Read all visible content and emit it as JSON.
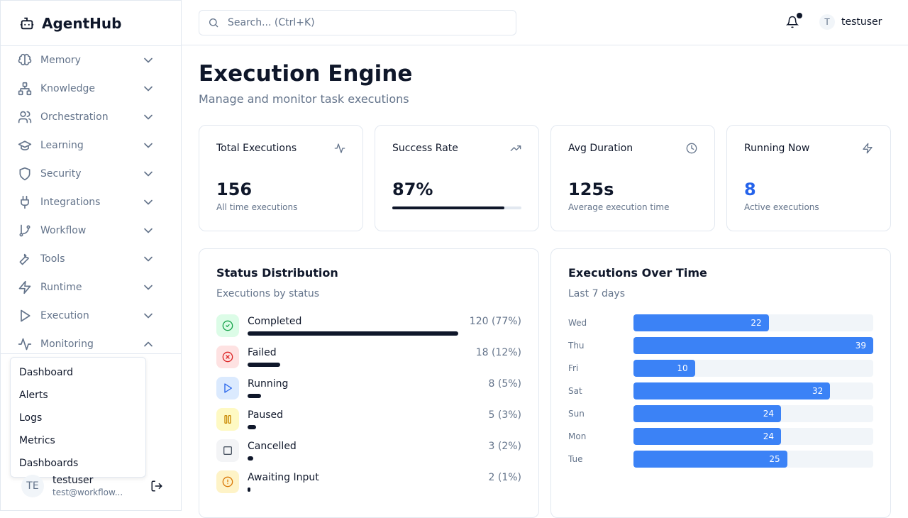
{
  "brand": {
    "name": "AgentHub"
  },
  "sidebar": {
    "items": [
      {
        "label": "Memory",
        "icon": "brain-icon"
      },
      {
        "label": "Knowledge",
        "icon": "network-icon"
      },
      {
        "label": "Orchestration",
        "icon": "users-icon"
      },
      {
        "label": "Learning",
        "icon": "graduation-cap-icon"
      },
      {
        "label": "Security",
        "icon": "shield-icon"
      },
      {
        "label": "Integrations",
        "icon": "plug-icon"
      },
      {
        "label": "Workflow",
        "icon": "git-branch-icon"
      },
      {
        "label": "Tools",
        "icon": "wrench-icon"
      },
      {
        "label": "Runtime",
        "icon": "zap-icon"
      },
      {
        "label": "Execution",
        "icon": "play-icon"
      },
      {
        "label": "Monitoring",
        "icon": "activity-icon",
        "expanded": true
      }
    ],
    "submenu": [
      "Dashboard",
      "Alerts",
      "Logs",
      "Metrics",
      "Dashboards"
    ],
    "user": {
      "initials": "TE",
      "name": "testuser",
      "email": "test@workflow..."
    }
  },
  "topbar": {
    "search_placeholder": "Search... (Ctrl+K)",
    "user_initial": "T",
    "username": "testuser"
  },
  "page": {
    "title": "Execution Engine",
    "subtitle": "Manage and monitor task executions"
  },
  "stats": [
    {
      "title": "Total Executions",
      "value": "156",
      "desc": "All time executions",
      "icon": "activity-icon"
    },
    {
      "title": "Success Rate",
      "value": "87%",
      "progress": 87,
      "icon": "trending-up-icon"
    },
    {
      "title": "Avg Duration",
      "value": "125s",
      "desc": "Average execution time",
      "icon": "clock-icon"
    },
    {
      "title": "Running Now",
      "value": "8",
      "desc": "Active executions",
      "icon": "zap-icon",
      "color": "#2563eb"
    }
  ],
  "status": {
    "title": "Status Distribution",
    "subtitle": "Executions by status",
    "items": [
      {
        "label": "Completed",
        "value": "120 (77%)",
        "pct": 77,
        "bg": "#dcfce7",
        "color": "#16a34a",
        "icon": "check-circle-icon"
      },
      {
        "label": "Failed",
        "value": "18 (12%)",
        "pct": 12,
        "bg": "#fee2e2",
        "color": "#dc2626",
        "icon": "x-circle-icon"
      },
      {
        "label": "Running",
        "value": "8 (5%)",
        "pct": 5,
        "bg": "#dbeafe",
        "color": "#2563eb",
        "icon": "play-icon"
      },
      {
        "label": "Paused",
        "value": "5 (3%)",
        "pct": 3,
        "bg": "#fef9c3",
        "color": "#ca8a04",
        "icon": "pause-icon"
      },
      {
        "label": "Cancelled",
        "value": "3 (2%)",
        "pct": 2,
        "bg": "#f3f4f6",
        "color": "#4b5563",
        "icon": "square-icon"
      },
      {
        "label": "Awaiting Input",
        "value": "2 (1%)",
        "pct": 1,
        "bg": "#fef3c7",
        "color": "#d97706",
        "icon": "alert-circle-icon"
      }
    ]
  },
  "chart_data": {
    "type": "bar",
    "orientation": "horizontal",
    "title": "Executions Over Time",
    "subtitle": "Last 7 days",
    "categories": [
      "Wed",
      "Thu",
      "Fri",
      "Sat",
      "Sun",
      "Mon",
      "Tue"
    ],
    "values": [
      22,
      39,
      10,
      32,
      24,
      24,
      25
    ],
    "color": "#3b82f6"
  }
}
